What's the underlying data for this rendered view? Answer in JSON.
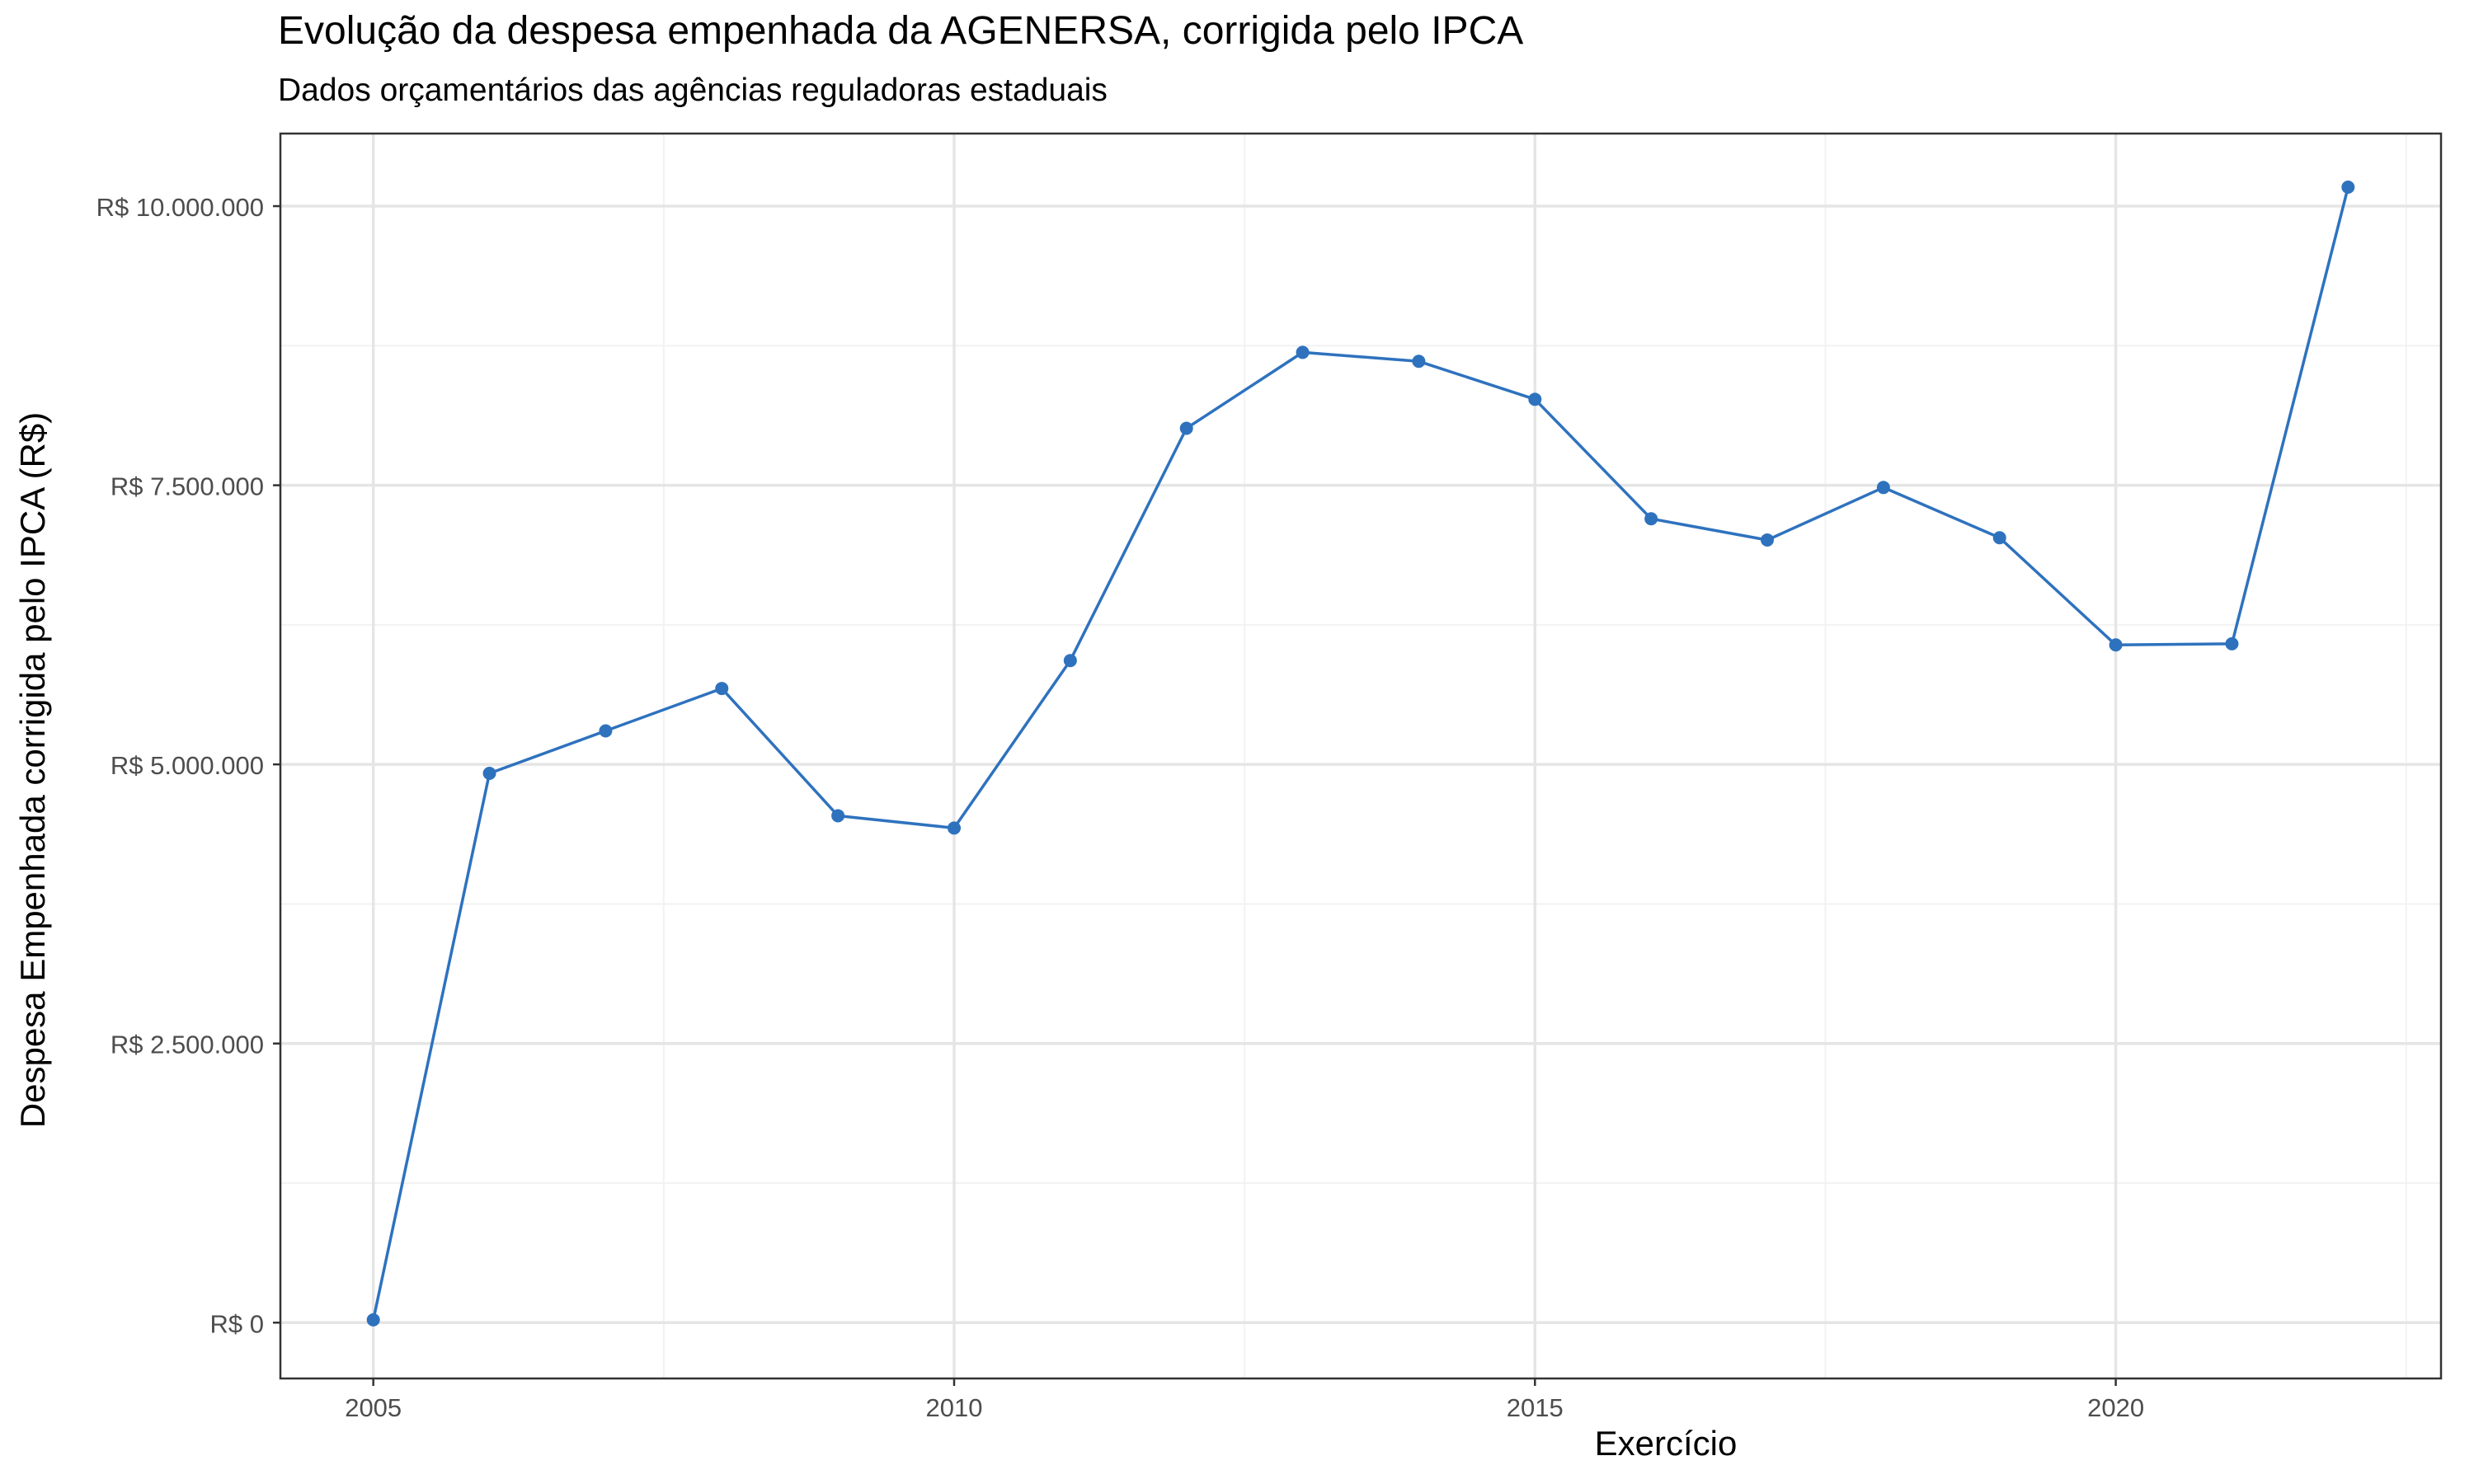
{
  "chart_data": {
    "type": "line",
    "title": "Evolução da despesa empenhada da AGENERSA, corrigida pelo IPCA",
    "subtitle": "Dados orçamentários das agências reguladoras estaduais",
    "xlabel": "Exercício",
    "ylabel": "Despesa Empenhada corrigida pelo IPCA (R$)",
    "x": [
      2005,
      2006,
      2007,
      2008,
      2009,
      2010,
      2011,
      2012,
      2013,
      2014,
      2015,
      2016,
      2017,
      2018,
      2019,
      2020,
      2021,
      2022
    ],
    "series": [
      {
        "values": [
          25000,
          4920000,
          5300000,
          5680000,
          4540000,
          4430000,
          5930000,
          8010000,
          8690000,
          8610000,
          8270000,
          7200000,
          7010000,
          7480000,
          7030000,
          6070000,
          6080000,
          10170000
        ]
      }
    ],
    "xlim": [
      2004.2,
      2022.8
    ],
    "ylim": [
      -500000,
      10650000
    ],
    "x_ticks": [
      2005,
      2010,
      2015,
      2020
    ],
    "x_tick_labels": [
      "2005",
      "2010",
      "2015",
      "2020"
    ],
    "y_ticks": [
      0,
      2500000,
      5000000,
      7500000,
      10000000
    ],
    "y_tick_labels": [
      "R$ 0",
      "R$ 2.500.000",
      "R$ 5.000.000",
      "R$ 7.500.000",
      "R$ 10.000.000"
    ],
    "x_minor_ticks": [
      2007.5,
      2012.5,
      2017.5,
      2022.5
    ],
    "y_minor_ticks": [
      1250000,
      3750000,
      6250000,
      8750000
    ],
    "grid": true,
    "colors": {
      "line": "#2E72BE",
      "point": "#2E72BE",
      "grid_major": "#E5E5E5",
      "grid_minor": "#F2F2F2",
      "frame": "#333333",
      "tick_text": "#4D4D4D"
    }
  }
}
